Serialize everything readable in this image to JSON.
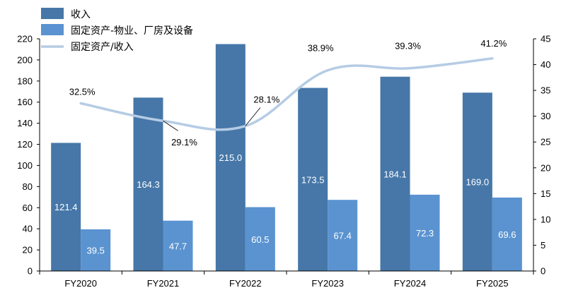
{
  "chart_data": {
    "type": "bar",
    "categories": [
      "FY2020",
      "FY2021",
      "FY2022",
      "FY2023",
      "FY2024",
      "FY2025"
    ],
    "series": [
      {
        "name": "收入",
        "type": "bar",
        "axis": "left",
        "color": "#4677A8",
        "values": [
          121.4,
          164.3,
          215.0,
          173.5,
          184.1,
          169.0
        ],
        "labels": [
          "121.4",
          "164.3",
          "215.0",
          "173.5",
          "184.1",
          "169.0"
        ]
      },
      {
        "name": "固定资产-物业、厂房及设备",
        "type": "bar",
        "axis": "left",
        "color": "#5A93D0",
        "values": [
          39.5,
          47.7,
          60.5,
          67.4,
          72.3,
          69.6
        ],
        "labels": [
          "39.5",
          "47.7",
          "60.5",
          "67.4",
          "72.3",
          "69.6"
        ]
      },
      {
        "name": "固定资产/收入",
        "type": "line",
        "axis": "right",
        "color": "#B6CCE4",
        "values": [
          32.5,
          29.1,
          28.1,
          38.9,
          39.3,
          41.2
        ],
        "labels": [
          "32.5%",
          "29.1%",
          "28.1%",
          "38.9%",
          "39.3%",
          "41.2%"
        ]
      }
    ],
    "left_axis": {
      "ylim": [
        0,
        220
      ],
      "ticks": [
        "0",
        "20",
        "40",
        "60",
        "80",
        "100",
        "120",
        "140",
        "160",
        "180",
        "200",
        "220"
      ]
    },
    "right_axis": {
      "ylim": [
        0,
        45
      ],
      "ticks": [
        "0",
        "5",
        "10",
        "15",
        "20",
        "25",
        "30",
        "35",
        "40",
        "45"
      ]
    },
    "grid": false,
    "legend_position": "top-left"
  }
}
